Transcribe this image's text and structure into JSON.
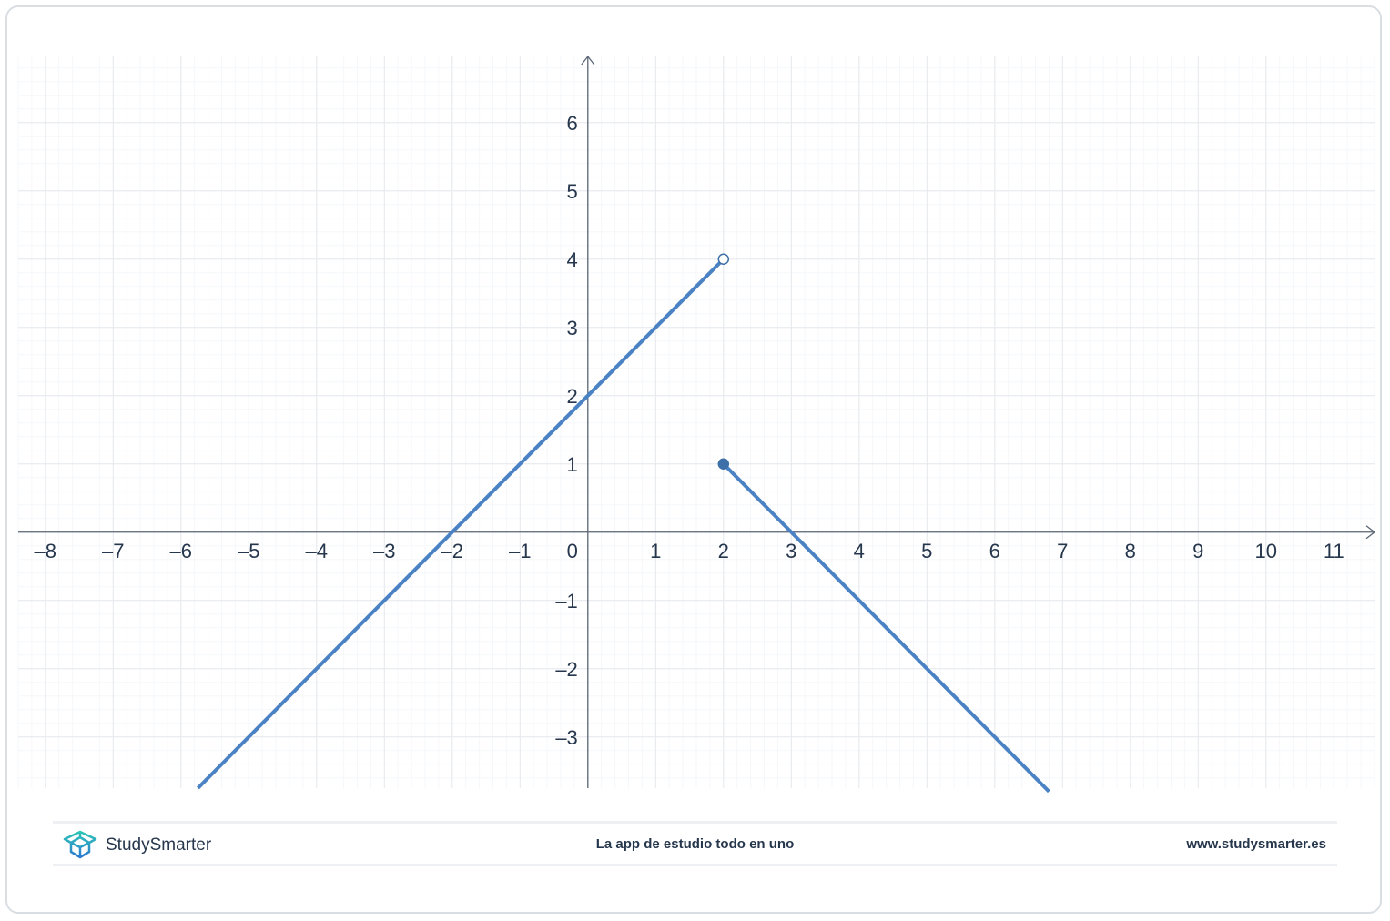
{
  "chart_data": {
    "type": "line",
    "title": "",
    "xlabel": "",
    "ylabel": "",
    "xlim": [
      -8.4,
      11.6
    ],
    "ylim": [
      -3.75,
      6.97
    ],
    "x_ticks": [
      -8,
      -7,
      -6,
      -5,
      -4,
      -3,
      -2,
      -1,
      0,
      1,
      2,
      3,
      4,
      5,
      6,
      7,
      8,
      9,
      10,
      11
    ],
    "y_ticks": [
      -3,
      -2,
      -1,
      1,
      2,
      3,
      4,
      5,
      6
    ],
    "grid": true,
    "line_color": "#4a82c4",
    "series": [
      {
        "equation": "y = x + 2",
        "domain": "x < 2",
        "points": [
          [
            -5.75,
            -3.75
          ],
          [
            2,
            4
          ]
        ],
        "endpoint": {
          "x": 2,
          "y": 4,
          "style": "open"
        }
      },
      {
        "equation": "y = -x + 3",
        "domain": "x >= 2",
        "points": [
          [
            2,
            1
          ],
          [
            6.8,
            -3.8
          ]
        ],
        "endpoint": {
          "x": 2,
          "y": 1,
          "style": "closed"
        }
      }
    ]
  },
  "footer": {
    "brand": "StudySmarter",
    "tagline": "La app de estudio todo en uno",
    "url": "www.studysmarter.es"
  }
}
